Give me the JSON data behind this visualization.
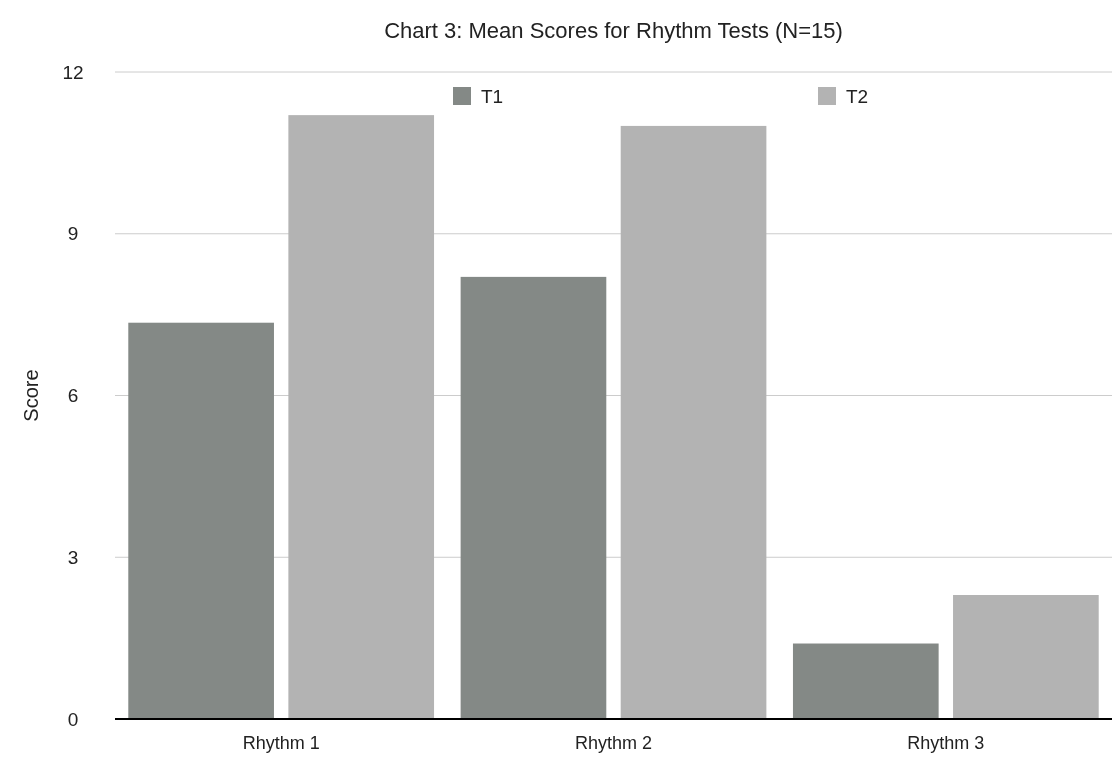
{
  "chart_data": {
    "type": "bar",
    "title": "Chart 3: Mean Scores for Rhythm Tests (N=15)",
    "ylabel": "Score",
    "categories": [
      "Rhythm 1",
      "Rhythm 2",
      "Rhythm 3"
    ],
    "series": [
      {
        "name": "T1",
        "color": "#848986",
        "values": [
          7.35,
          8.2,
          1.4
        ]
      },
      {
        "name": "T2",
        "color": "#b3b3b3",
        "values": [
          11.2,
          11.0,
          2.3
        ]
      }
    ],
    "ylim": [
      0,
      12
    ],
    "yticks": [
      0,
      3,
      6,
      9,
      12
    ],
    "grid": "y",
    "legend": "top"
  }
}
